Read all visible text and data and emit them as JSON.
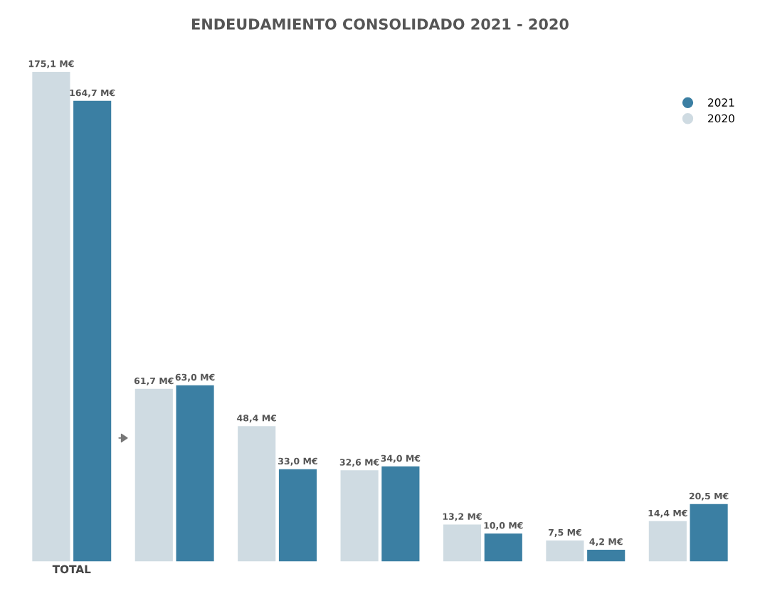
{
  "chart_data": {
    "type": "bar",
    "title": "ENDEUDAMIENTO CONSOLIDADO 2021 - 2020",
    "categories": [
      "TOTAL",
      null,
      null,
      null,
      null,
      null,
      null
    ],
    "series": [
      {
        "name": "2020",
        "color": "#cfdbe2",
        "values": [
          175.1,
          61.7,
          48.4,
          32.6,
          13.2,
          7.5,
          14.4
        ],
        "value_labels": [
          "175,1 M€",
          "61,7 M€",
          "48,4 M€",
          "32,6 M€",
          "13,2 M€",
          "7,5 M€",
          "14,4 M€"
        ]
      },
      {
        "name": "2021",
        "color": "#3b7fa3",
        "values": [
          164.7,
          63.0,
          33.0,
          34.0,
          10.0,
          4.2,
          20.5
        ],
        "value_labels": [
          "164,7 M€",
          "63,0 M€",
          "33,0 M€",
          "34,0 M€",
          "10,0 M€",
          "4,2 M€",
          "20,5 M€"
        ]
      }
    ],
    "legend": "top right",
    "grid": false
  }
}
